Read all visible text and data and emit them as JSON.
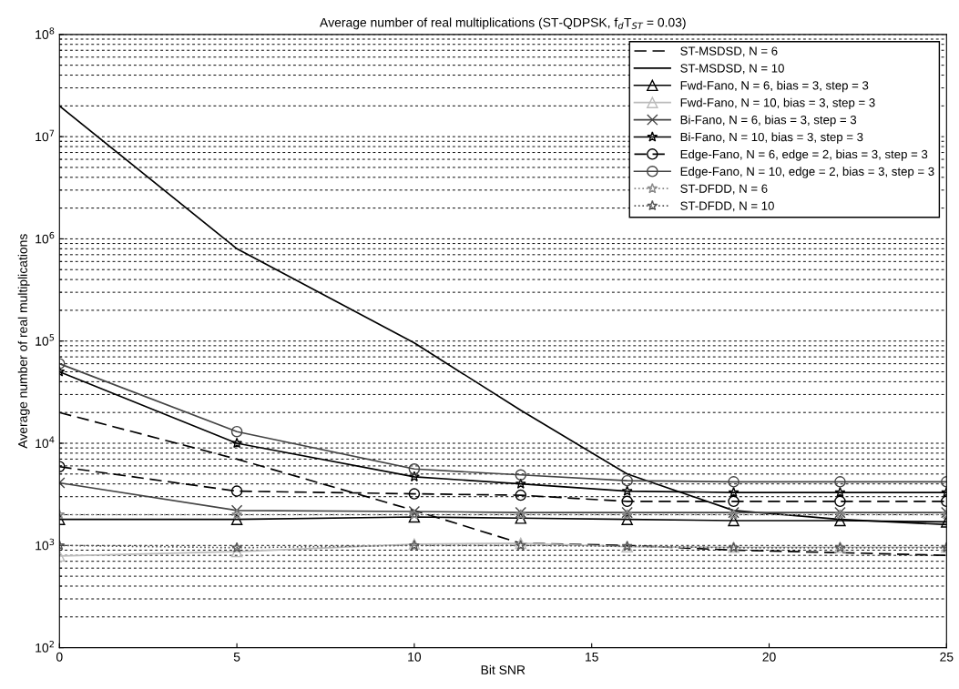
{
  "chart_data": {
    "type": "line",
    "title": "Average number of real multiplications (ST-QDPSK, f$_{d}$T$_{ST}$ = 0.03)",
    "xlabel": "Bit SNR",
    "ylabel": "Average number of real multiplications",
    "x": [
      0,
      5,
      10,
      13,
      16,
      19,
      22,
      25
    ],
    "series": [
      {
        "name": "ST-MSDSD, N = 6",
        "color": "#000000",
        "line_style": "dashed",
        "marker": "none",
        "values": [
          20000,
          7000,
          2200,
          1050,
          1000,
          900,
          850,
          800
        ]
      },
      {
        "name": "ST-MSDSD, N = 10",
        "color": "#000000",
        "line_style": "solid",
        "marker": "none",
        "values": [
          20000000,
          800000,
          96000,
          21000,
          5000,
          2200,
          1800,
          1600
        ]
      },
      {
        "name": "Fwd-Fano, N = 6, bias = 3, step = 3",
        "color": "#000000",
        "line_style": "solid",
        "marker": "triangle",
        "values": [
          1800,
          1800,
          1900,
          1850,
          1800,
          1750,
          1750,
          1700
        ]
      },
      {
        "name": "Fwd-Fano, N = 10, bias = 3, step = 3",
        "color": "#bbbbbb",
        "line_style": "solid",
        "marker": "triangle",
        "values": [
          790,
          870,
          1030,
          1050,
          970,
          960,
          960,
          960
        ]
      },
      {
        "name": "Bi-Fano, N = 6, bias = 3, step = 3",
        "color": "#444444",
        "line_style": "solid",
        "marker": "cross",
        "values": [
          4100,
          2200,
          2150,
          2100,
          2100,
          2100,
          2100,
          2100
        ]
      },
      {
        "name": "Bi-Fano, N = 10, bias = 3, step = 3",
        "color": "#000000",
        "line_style": "solid",
        "marker": "star",
        "values": [
          50000,
          10000,
          4700,
          4000,
          3400,
          3300,
          3300,
          3300
        ]
      },
      {
        "name": "Edge-Fano, N = 6, edge = 2, bias = 3, step = 3",
        "color": "#000000",
        "line_style": "dashed",
        "marker": "circle",
        "values": [
          5900,
          3400,
          3200,
          3100,
          2700,
          2700,
          2700,
          2700
        ]
      },
      {
        "name": "Edge-Fano, N = 10, edge = 2, bias = 3, step = 3",
        "color": "#444444",
        "line_style": "solid",
        "marker": "circle",
        "values": [
          60000,
          13000,
          5600,
          4900,
          4300,
          4200,
          4200,
          4200
        ]
      },
      {
        "name": "ST-DFDD, N = 6",
        "color": "#888888",
        "line_style": "dotted",
        "marker": "star",
        "values": [
          2000,
          2000,
          2000,
          2000,
          2000,
          2000,
          2000,
          2000
        ]
      },
      {
        "name": "ST-DFDD, N = 10",
        "color": "#555555",
        "line_style": "dotted",
        "marker": "star",
        "values": [
          1000,
          950,
          1000,
          1000,
          980,
          950,
          950,
          950
        ]
      }
    ],
    "log": "y",
    "xlim": [
      0,
      25
    ],
    "xticks": [
      0,
      5,
      10,
      15,
      20,
      25
    ],
    "ylim": [
      100,
      100000000
    ],
    "yticks": [
      {
        "value": 100,
        "label": "10$^{2}$"
      },
      {
        "value": 1000,
        "label": "10$^{3}$"
      },
      {
        "value": 10000,
        "label": "10$^{4}$"
      },
      {
        "value": 100000,
        "label": "10$^{5}$"
      },
      {
        "value": 1000000,
        "label": "10$^{6}$"
      },
      {
        "value": 10000000,
        "label": "10$^{7}$"
      },
      {
        "value": 100000000,
        "label": "10$^{8}$"
      }
    ],
    "grid": "y",
    "legend": "top right"
  }
}
